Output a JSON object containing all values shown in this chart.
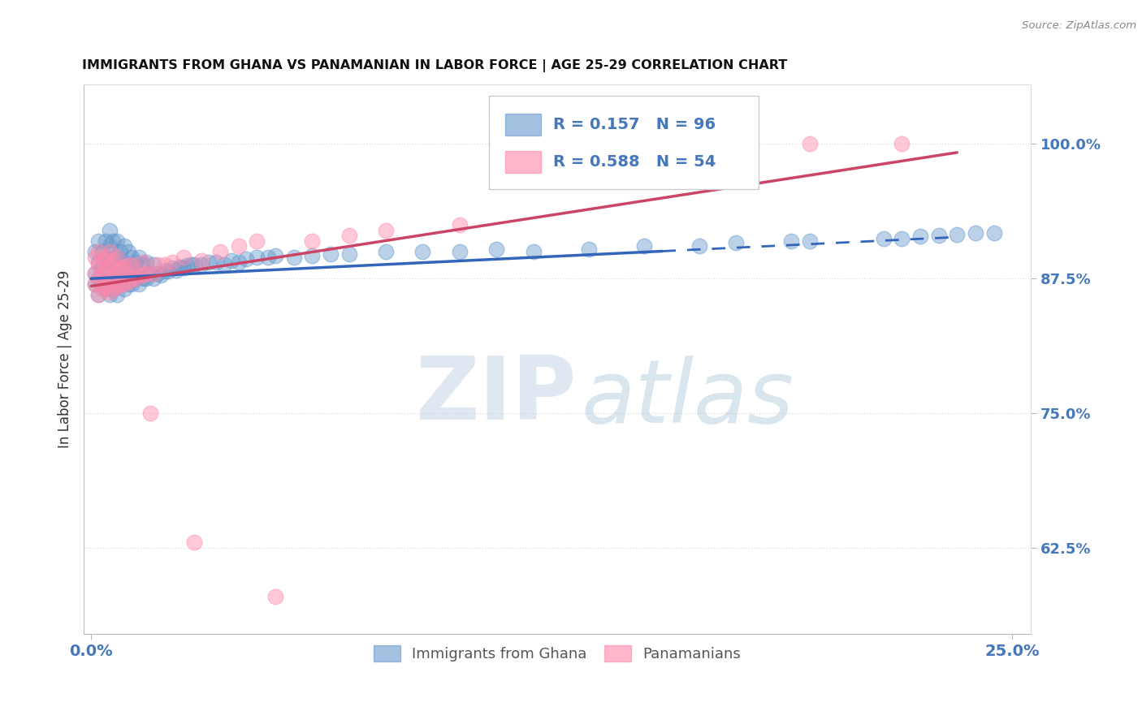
{
  "title": "IMMIGRANTS FROM GHANA VS PANAMANIAN IN LABOR FORCE | AGE 25-29 CORRELATION CHART",
  "source": "Source: ZipAtlas.com",
  "ylabel": "In Labor Force | Age 25-29",
  "yticks": [
    0.625,
    0.75,
    0.875,
    1.0
  ],
  "ytick_labels": [
    "62.5%",
    "75.0%",
    "87.5%",
    "100.0%"
  ],
  "xtick_labels": [
    "0.0%",
    "25.0%"
  ],
  "xlim": [
    -0.002,
    0.255
  ],
  "ylim": [
    0.545,
    1.055
  ],
  "legend_label_1": "Immigrants from Ghana",
  "legend_label_2": "Panamanians",
  "r1": 0.157,
  "n1": 96,
  "r2": 0.588,
  "n2": 54,
  "color_blue": "#6699CC",
  "color_pink": "#FF88AA",
  "watermark_zip": "ZIP",
  "watermark_atlas": "atlas",
  "title_color": "#111111",
  "axis_label_color": "#4477BB",
  "grid_color": "#DDDDDD",
  "line_blue": "#3366BB",
  "line_pink": "#CC4466",
  "blue_line_solid_end": 0.155,
  "blue_line_dash_start": 0.155,
  "blue_line_end": 0.235,
  "pink_line_end": 0.235,
  "blue_x": [
    0.001,
    0.001,
    0.001,
    0.002,
    0.002,
    0.002,
    0.002,
    0.003,
    0.003,
    0.003,
    0.004,
    0.004,
    0.004,
    0.004,
    0.005,
    0.005,
    0.005,
    0.005,
    0.005,
    0.006,
    0.006,
    0.006,
    0.006,
    0.007,
    0.007,
    0.007,
    0.007,
    0.007,
    0.008,
    0.008,
    0.008,
    0.009,
    0.009,
    0.009,
    0.009,
    0.01,
    0.01,
    0.01,
    0.011,
    0.011,
    0.011,
    0.012,
    0.012,
    0.013,
    0.013,
    0.013,
    0.014,
    0.014,
    0.015,
    0.015,
    0.016,
    0.017,
    0.017,
    0.018,
    0.019,
    0.02,
    0.021,
    0.022,
    0.023,
    0.024,
    0.025,
    0.026,
    0.027,
    0.028,
    0.03,
    0.032,
    0.034,
    0.036,
    0.038,
    0.04,
    0.042,
    0.045,
    0.048,
    0.05,
    0.055,
    0.06,
    0.065,
    0.07,
    0.08,
    0.09,
    0.1,
    0.11,
    0.12,
    0.135,
    0.15,
    0.165,
    0.175,
    0.19,
    0.195,
    0.215,
    0.22,
    0.225,
    0.23,
    0.235,
    0.24,
    0.245
  ],
  "blue_y": [
    0.87,
    0.88,
    0.9,
    0.86,
    0.875,
    0.89,
    0.91,
    0.87,
    0.885,
    0.9,
    0.865,
    0.88,
    0.895,
    0.91,
    0.86,
    0.875,
    0.89,
    0.905,
    0.92,
    0.865,
    0.88,
    0.895,
    0.91,
    0.86,
    0.875,
    0.885,
    0.895,
    0.91,
    0.87,
    0.885,
    0.9,
    0.865,
    0.878,
    0.89,
    0.905,
    0.87,
    0.885,
    0.9,
    0.87,
    0.882,
    0.895,
    0.875,
    0.89,
    0.87,
    0.88,
    0.895,
    0.875,
    0.888,
    0.875,
    0.89,
    0.88,
    0.875,
    0.888,
    0.88,
    0.878,
    0.882,
    0.882,
    0.885,
    0.883,
    0.886,
    0.885,
    0.887,
    0.888,
    0.888,
    0.888,
    0.89,
    0.89,
    0.888,
    0.892,
    0.89,
    0.893,
    0.895,
    0.895,
    0.896,
    0.895,
    0.896,
    0.898,
    0.898,
    0.9,
    0.9,
    0.9,
    0.902,
    0.9,
    0.902,
    0.905,
    0.905,
    0.908,
    0.91,
    0.91,
    0.912,
    0.912,
    0.914,
    0.915,
    0.916,
    0.917,
    0.917
  ],
  "pink_x": [
    0.001,
    0.001,
    0.001,
    0.002,
    0.002,
    0.002,
    0.002,
    0.003,
    0.003,
    0.003,
    0.004,
    0.004,
    0.004,
    0.005,
    0.005,
    0.005,
    0.005,
    0.006,
    0.006,
    0.006,
    0.007,
    0.007,
    0.007,
    0.008,
    0.008,
    0.009,
    0.009,
    0.01,
    0.01,
    0.011,
    0.011,
    0.012,
    0.013,
    0.014,
    0.014,
    0.015,
    0.016,
    0.017,
    0.018,
    0.02,
    0.022,
    0.025,
    0.028,
    0.03,
    0.035,
    0.04,
    0.045,
    0.05,
    0.06,
    0.07,
    0.08,
    0.1,
    0.195,
    0.22
  ],
  "pink_y": [
    0.87,
    0.88,
    0.895,
    0.86,
    0.875,
    0.888,
    0.9,
    0.865,
    0.878,
    0.892,
    0.868,
    0.882,
    0.895,
    0.862,
    0.875,
    0.888,
    0.9,
    0.865,
    0.878,
    0.892,
    0.868,
    0.882,
    0.895,
    0.87,
    0.885,
    0.87,
    0.885,
    0.872,
    0.887,
    0.875,
    0.888,
    0.875,
    0.878,
    0.878,
    0.89,
    0.88,
    0.75,
    0.88,
    0.888,
    0.888,
    0.89,
    0.895,
    0.63,
    0.892,
    0.9,
    0.905,
    0.91,
    0.58,
    0.91,
    0.915,
    0.92,
    0.925,
    1.0,
    1.0
  ]
}
